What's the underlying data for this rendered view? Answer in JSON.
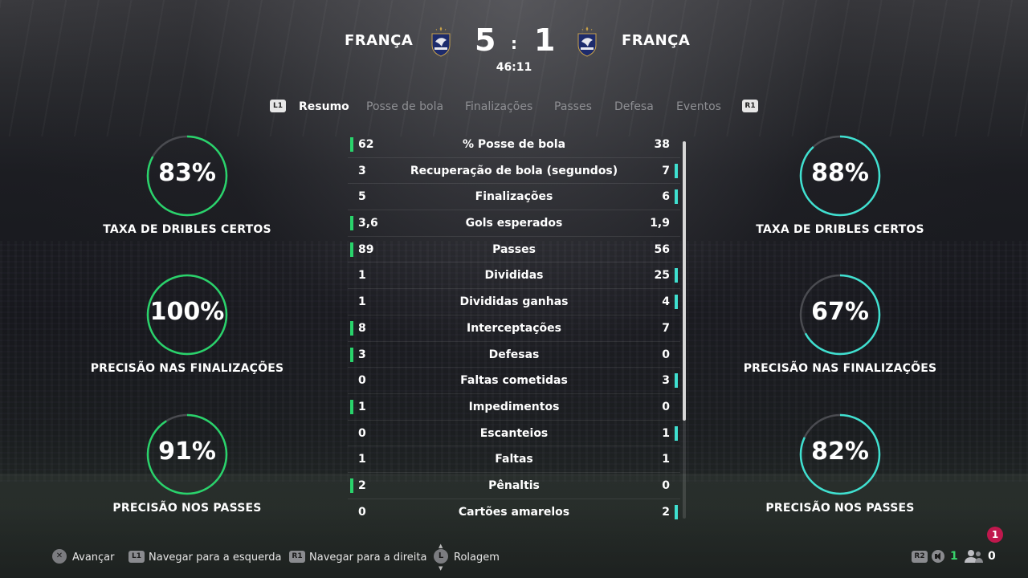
{
  "match": {
    "home_team": "FRANÇA",
    "away_team": "FRANÇA",
    "home_score": "5",
    "away_score": "1",
    "separator": ":",
    "clock": "46:11",
    "crest_colors": {
      "primary": "#1d2b6b",
      "gold": "#c9a24a"
    }
  },
  "tabs": {
    "left_button": "L1",
    "right_button": "R1",
    "items": [
      "Resumo",
      "Posse de bola",
      "Finalizações",
      "Passes",
      "Defesa",
      "Eventos"
    ],
    "active": "Resumo"
  },
  "left_rings": [
    {
      "value": "83%",
      "label": "TAXA DE DRIBLES CERTOS",
      "fraction": 0.83
    },
    {
      "value": "100%",
      "label": "PRECISÃO NAS FINALIZAÇÕES",
      "fraction": 1.0
    },
    {
      "value": "91%",
      "label": "PRECISÃO NOS PASSES",
      "fraction": 0.91
    }
  ],
  "right_rings": [
    {
      "value": "88%",
      "label": "TAXA DE DRIBLES CERTOS",
      "fraction": 0.88
    },
    {
      "value": "67%",
      "label": "PRECISÃO NAS FINALIZAÇÕES",
      "fraction": 0.67
    },
    {
      "value": "82%",
      "label": "PRECISÃO NOS PASSES",
      "fraction": 0.82
    }
  ],
  "colors": {
    "home": "#29d36b",
    "away": "#3fe0d0",
    "ring_track": "#4a4b50"
  },
  "stats": [
    {
      "name": "% Posse de bola",
      "home": "62",
      "away": "38",
      "leader": "home"
    },
    {
      "name": "Recuperação de bola (segundos)",
      "home": "3",
      "away": "7",
      "leader": "away"
    },
    {
      "name": "Finalizações",
      "home": "5",
      "away": "6",
      "leader": "away"
    },
    {
      "name": "Gols esperados",
      "home": "3,6",
      "away": "1,9",
      "leader": "home"
    },
    {
      "name": "Passes",
      "home": "89",
      "away": "56",
      "leader": "home"
    },
    {
      "name": "Divididas",
      "home": "1",
      "away": "25",
      "leader": "away"
    },
    {
      "name": "Divididas ganhas",
      "home": "1",
      "away": "4",
      "leader": "away"
    },
    {
      "name": "Interceptações",
      "home": "8",
      "away": "7",
      "leader": "home"
    },
    {
      "name": "Defesas",
      "home": "3",
      "away": "0",
      "leader": "home"
    },
    {
      "name": "Faltas cometidas",
      "home": "0",
      "away": "3",
      "leader": "away"
    },
    {
      "name": "Impedimentos",
      "home": "1",
      "away": "0",
      "leader": "home"
    },
    {
      "name": "Escanteios",
      "home": "0",
      "away": "1",
      "leader": "away"
    },
    {
      "name": "Faltas",
      "home": "1",
      "away": "1",
      "leader": "none"
    },
    {
      "name": "Pênaltis",
      "home": "2",
      "away": "0",
      "leader": "home"
    },
    {
      "name": "Cartões amarelos",
      "home": "0",
      "away": "2",
      "leader": "away"
    }
  ],
  "footer": {
    "hints": [
      {
        "icon": "cross-button-icon",
        "badge": "",
        "label": "Avançar"
      },
      {
        "icon": "l1-button-icon",
        "badge": "L1",
        "label": "Navegar para a esquerda"
      },
      {
        "icon": "r1-button-icon",
        "badge": "R1",
        "label": "Navegar para a direita"
      },
      {
        "icon": "left-stick-icon",
        "badge": "L",
        "label": "Rolagem"
      }
    ],
    "notification_count": "1",
    "r2_badge": "R2",
    "voice_count": "1",
    "party_count": "0"
  }
}
